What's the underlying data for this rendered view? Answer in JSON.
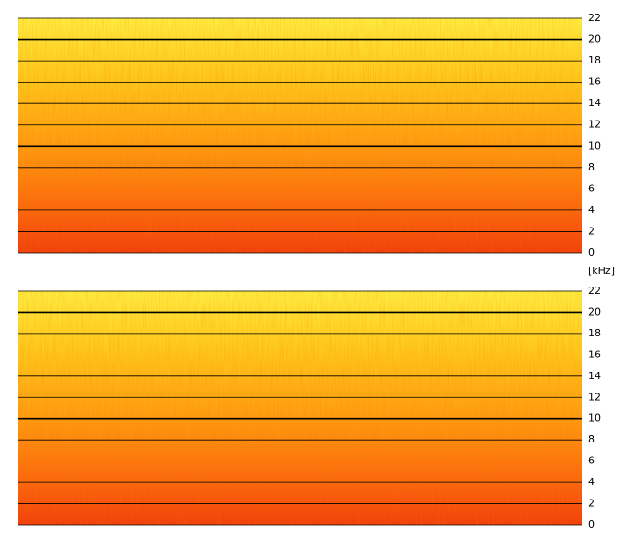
{
  "chart_data": [
    {
      "type": "spectrogram",
      "ylim": [
        0,
        22
      ],
      "yticks": [
        0,
        2,
        4,
        6,
        8,
        10,
        12,
        14,
        16,
        18,
        20,
        22
      ],
      "grid": true
    },
    {
      "type": "spectrogram",
      "ylabel": "[kHz]",
      "ylim": [
        0,
        22
      ],
      "yticks": [
        0,
        2,
        4,
        6,
        8,
        10,
        12,
        14,
        16,
        18,
        20,
        22
      ],
      "grid": true
    }
  ]
}
